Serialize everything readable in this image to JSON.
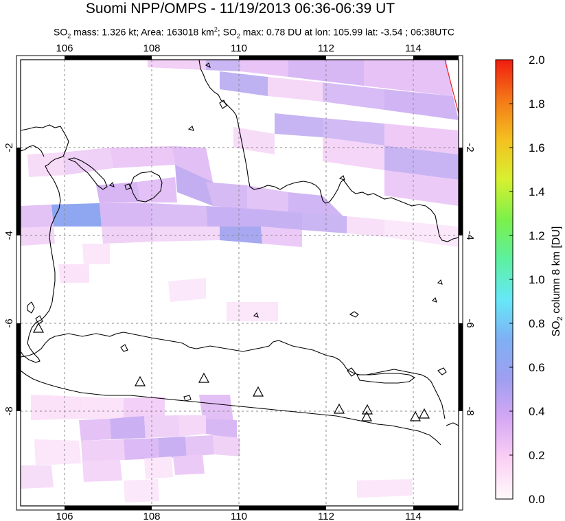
{
  "header": {
    "title": "Suomi NPP/OMPS - 11/19/2013 06:36-06:39 UT",
    "subtitle": {
      "mass_prefix": "SO",
      "mass_sub": "2",
      "mass_text": " mass: 1.326 kt; Area: 163018 km",
      "area_sup": "2",
      "max_prefix": "; SO",
      "max_sub": "2",
      "max_text": " max: 0.78 DU at lon: 105.99 lat: -3.54 ; 06:38UTC"
    }
  },
  "map": {
    "lon_range": [
      105,
      115
    ],
    "lat_range": [
      -10.2,
      0.1
    ],
    "lon_ticks": [
      "106",
      "108",
      "110",
      "112",
      "114"
    ],
    "lat_ticks_left": [
      "-2",
      "-4",
      "-6",
      "-8"
    ],
    "lat_ticks_right": [
      "-2",
      "-4",
      "-6",
      "-8"
    ],
    "volcano_marker": "triangle-outline",
    "colors": {
      "frame": "#000000",
      "coast": "#000000",
      "grid": "#888888",
      "land_bg": "#ffffff"
    }
  },
  "colorbar": {
    "label_main": "SO",
    "label_sub": "2",
    "label_rest": " column 8 km [DU]",
    "ticks": [
      "2.0",
      "1.8",
      "1.6",
      "1.4",
      "1.2",
      "1.0",
      "0.8",
      "0.6",
      "0.4",
      "0.2",
      "0.0"
    ],
    "colors": [
      "#fffafa",
      "#fbd0f4",
      "#d6a8f4",
      "#9f9ff0",
      "#7fb0f4",
      "#66e8f8",
      "#5cf0a0",
      "#7cf04a",
      "#d8f030",
      "#f4c020",
      "#f47818",
      "#f01c10"
    ]
  }
}
